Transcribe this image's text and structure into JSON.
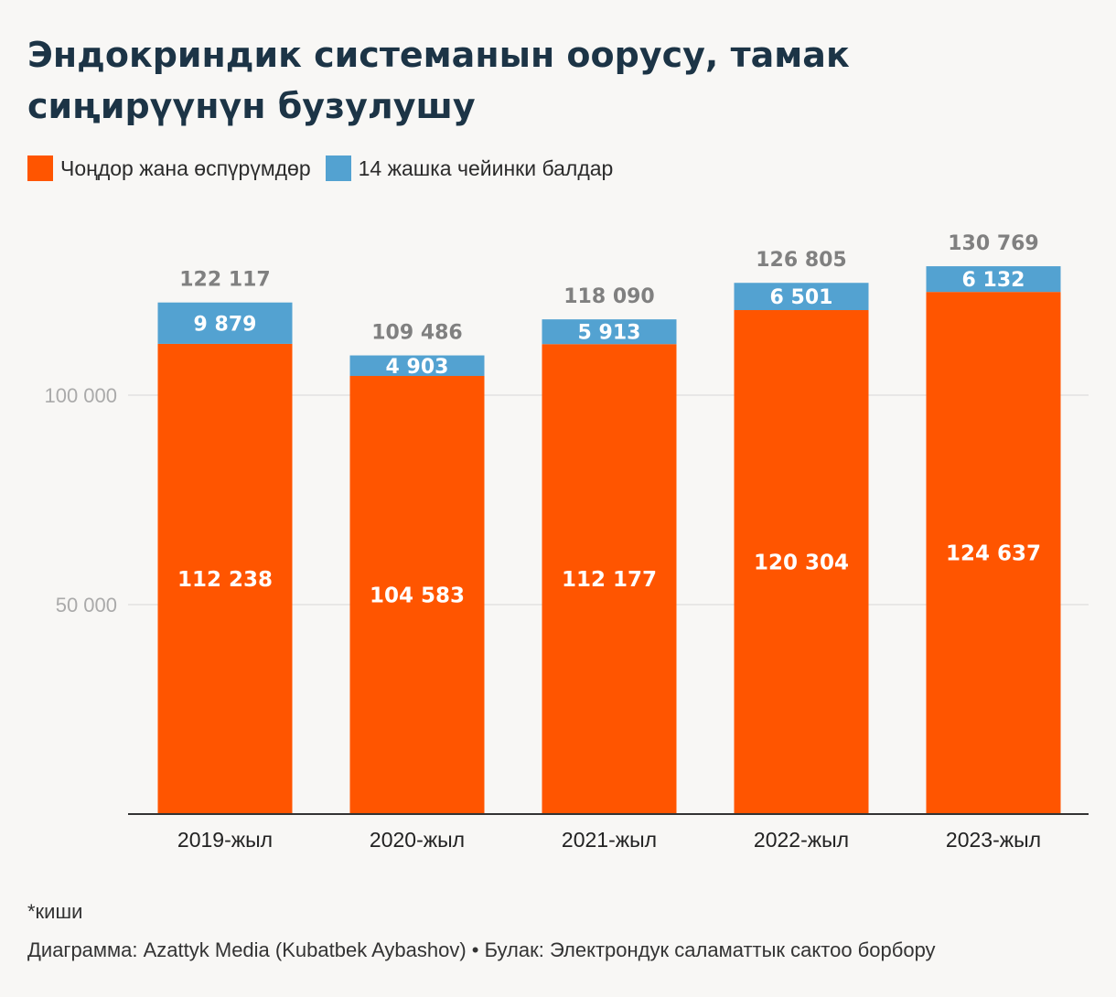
{
  "colors": {
    "adults": "#ff5500",
    "children": "#53a2d1",
    "grid": "#e2e2e2",
    "axis": "#333333"
  },
  "chart_data": {
    "type": "bar",
    "stacked": true,
    "title": "Эндокриндик системанын оорусу, тамак сиңирүүнүн бузулушу",
    "categories": [
      "2019-жыл",
      "2020-жыл",
      "2021-жыл",
      "2022-жыл",
      "2023-жыл"
    ],
    "series": [
      {
        "name": "Чоңдор жана өспүрүмдөр",
        "values": [
          112238,
          104583,
          112177,
          120304,
          124637
        ],
        "labels": [
          "112 238",
          "104 583",
          "112 177",
          "120 304",
          "124 637"
        ]
      },
      {
        "name": "14 жашка чейинки балдар",
        "values": [
          9879,
          4903,
          5913,
          6501,
          6132
        ],
        "labels": [
          "9 879",
          "4 903",
          "5 913",
          "6 501",
          "6 132"
        ]
      }
    ],
    "totals": [
      "122 117",
      "109 486",
      "118 090",
      "126 805",
      "130 769"
    ],
    "yticks": [
      50000,
      100000
    ],
    "ytick_labels": [
      "50 000",
      "100 000"
    ],
    "ylim": [
      0,
      140000
    ],
    "legend_position": "top-left"
  },
  "footnote": "*киши",
  "credits": "Диаграмма: Azattyk Media (Kubatbek Aybashov) • Булак: Электрондук саламаттык сактоо борбору"
}
